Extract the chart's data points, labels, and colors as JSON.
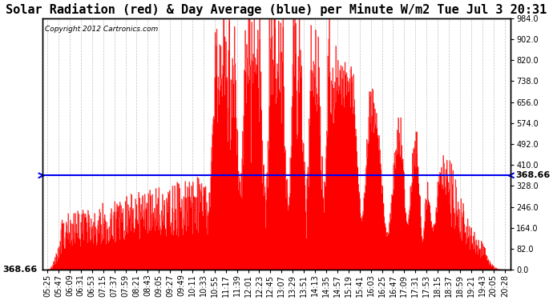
{
  "title": "Solar Radiation (red) & Day Average (blue) per Minute W/m2 Tue Jul 3 20:31",
  "copyright_text": "Copyright 2012 Cartronics.com",
  "y_max": 984.0,
  "y_min": 0.0,
  "y_ticks": [
    0.0,
    82.0,
    164.0,
    246.0,
    328.0,
    410.0,
    492.0,
    574.0,
    656.0,
    738.0,
    820.0,
    902.0,
    984.0
  ],
  "day_average": 368.66,
  "bar_color": "#FF0000",
  "avg_line_color": "#0000EE",
  "background_color": "#FFFFFF",
  "grid_color": "#BBBBBB",
  "x_tick_labels": [
    "05:25",
    "05:47",
    "06:09",
    "06:31",
    "06:53",
    "07:15",
    "07:37",
    "07:59",
    "08:21",
    "08:43",
    "09:05",
    "09:27",
    "09:49",
    "10:11",
    "10:33",
    "10:55",
    "11:17",
    "11:39",
    "12:01",
    "12:23",
    "12:45",
    "13:07",
    "13:29",
    "13:51",
    "14:13",
    "14:35",
    "14:57",
    "15:19",
    "15:41",
    "16:03",
    "16:25",
    "16:47",
    "17:09",
    "17:31",
    "17:53",
    "18:15",
    "18:37",
    "18:59",
    "19:21",
    "19:43",
    "20:05",
    "20:28"
  ],
  "title_fontsize": 11,
  "tick_fontsize": 7,
  "avg_label_fontsize": 8,
  "figsize": [
    6.9,
    3.75
  ],
  "dpi": 100
}
